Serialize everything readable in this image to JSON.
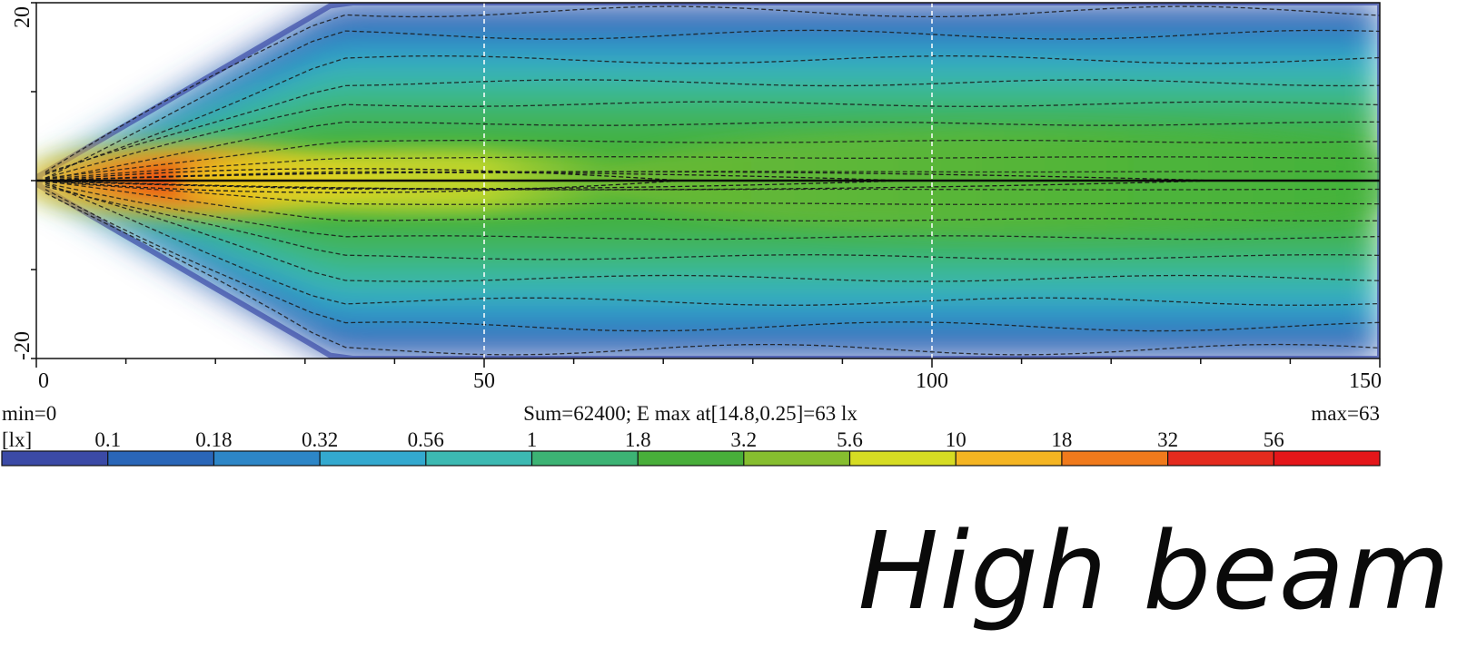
{
  "chart_data": {
    "type": "heatmap",
    "title": "",
    "xlabel": "",
    "ylabel": "",
    "xlim": [
      0,
      150
    ],
    "ylim": [
      -20,
      20
    ],
    "x_ticks": [
      0,
      50,
      100,
      150
    ],
    "y_ticks": [
      20,
      -20
    ],
    "x_tick_labels": [
      "0",
      "50",
      "100",
      "150"
    ],
    "y_tick_labels": [
      "20",
      "-20"
    ],
    "reference_lines_x": [
      50,
      100
    ],
    "reference_line_y": 0,
    "grid": false,
    "colorscale": {
      "unit": "[lx]",
      "levels": [
        0.1,
        0.18,
        0.32,
        0.56,
        1,
        1.8,
        3.2,
        5.6,
        10,
        18,
        32,
        56
      ],
      "labels": [
        "0.1",
        "0.18",
        "0.32",
        "0.56",
        "1",
        "1.8",
        "3.2",
        "5.6",
        "10",
        "18",
        "32",
        "56"
      ],
      "colors": [
        "#3b4aa6",
        "#2a66b8",
        "#2d86c7",
        "#33a9cf",
        "#3cb9b2",
        "#3cb374",
        "#48ae3a",
        "#86be2f",
        "#d6dc23",
        "#f5b522",
        "#f07a1c",
        "#e42b1e",
        "#e4161a"
      ]
    },
    "stats": {
      "min_label": "min=0",
      "max_label": "max=63",
      "summary": "Sum=62400; E max at[14.8,0.25]=63 lx",
      "min": 0,
      "max": 63,
      "sum": 62400,
      "max_point": [
        14.8,
        0.25
      ],
      "max_value": 63
    }
  },
  "caption": "High beam"
}
